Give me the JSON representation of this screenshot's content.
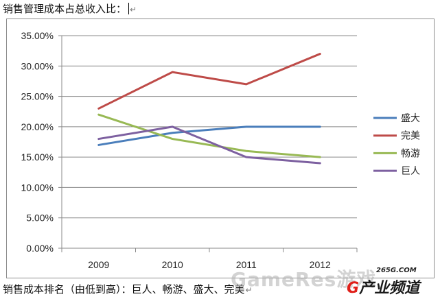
{
  "document": {
    "heading": "销售管理成本占总收入比：",
    "footer": "销售成本排名（由低到高）：巨人、畅游、盛大、完美",
    "para_mark": "↵"
  },
  "watermark": {
    "text": "GameRes游戏",
    "site": "265G.COM",
    "logo_g": "G",
    "logo_text": "产业频道"
  },
  "chart_data": {
    "type": "line",
    "categories": [
      "2009",
      "2010",
      "2011",
      "2012"
    ],
    "y_ticks": [
      "0.00%",
      "5.00%",
      "10.00%",
      "15.00%",
      "20.00%",
      "25.00%",
      "30.00%",
      "35.00%"
    ],
    "ylim": [
      0,
      35
    ],
    "y_step": 5,
    "grid": true,
    "legend_position": "right",
    "series": [
      {
        "name": "盛大",
        "color": "#4a7ebb",
        "values": [
          17,
          19,
          20,
          20
        ]
      },
      {
        "name": "完美",
        "color": "#be4b48",
        "values": [
          23,
          29,
          27,
          32
        ]
      },
      {
        "name": "畅游",
        "color": "#98b954",
        "values": [
          22,
          18,
          16,
          15
        ]
      },
      {
        "name": "巨人",
        "color": "#7d60a0",
        "values": [
          18,
          20,
          15,
          14
        ]
      }
    ]
  }
}
